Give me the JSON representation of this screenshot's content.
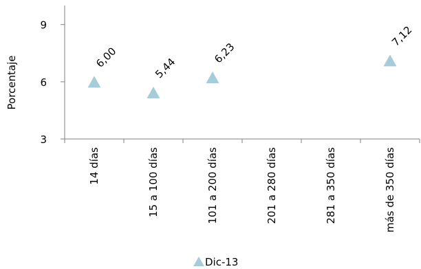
{
  "chart_data": {
    "type": "scatter",
    "categories": [
      "14 días",
      "15 a 100 días",
      "101 a 200 días",
      "201 a 280 días",
      "281 a 350 días",
      "más de  350 días"
    ],
    "series": [
      {
        "name": "Dic-13",
        "marker": "triangle",
        "color": "#a5ccd8",
        "values": [
          6.0,
          5.44,
          6.23,
          null,
          null,
          7.12
        ],
        "data_labels": [
          "6,00",
          "5,44",
          "6,23",
          "",
          "",
          "7,12"
        ]
      }
    ],
    "ylabel": "Porcentaje",
    "xlabel": "",
    "ylim": [
      3,
      10
    ],
    "yticks": [
      3,
      6,
      9
    ],
    "ytick_labels": [
      "3",
      "6",
      "9"
    ],
    "grid": false,
    "legend_position": "bottom"
  }
}
